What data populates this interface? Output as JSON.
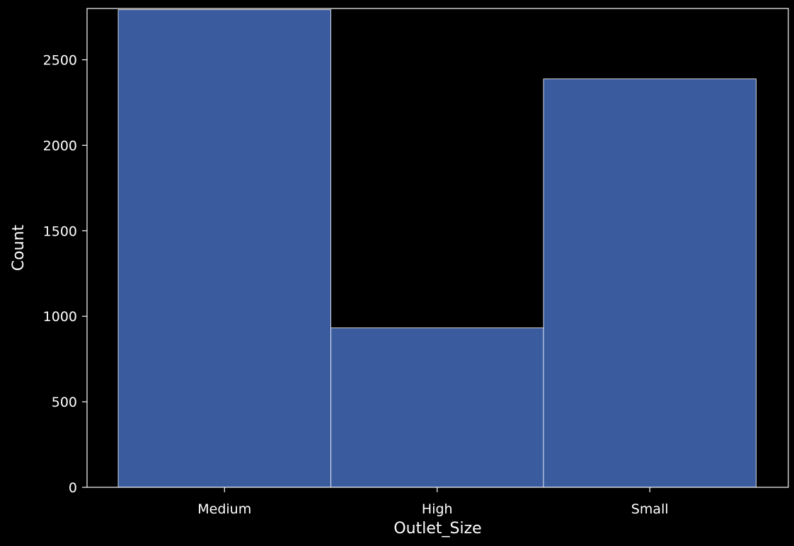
{
  "chart_data": {
    "type": "bar",
    "categories": [
      "Medium",
      "High",
      "Small"
    ],
    "values": [
      2793,
      932,
      2388
    ],
    "title": "",
    "xlabel": "Outlet_Size",
    "ylabel": "Count",
    "ylim": [
      0,
      2800
    ],
    "yticks": [
      0,
      500,
      1000,
      1500,
      2000,
      2500
    ],
    "grid": false,
    "bar_color": "#3A5C9F",
    "bar_edge_color": "#FFFFFF",
    "background_color": "#000000",
    "axis_color": "#FFFFFF"
  }
}
